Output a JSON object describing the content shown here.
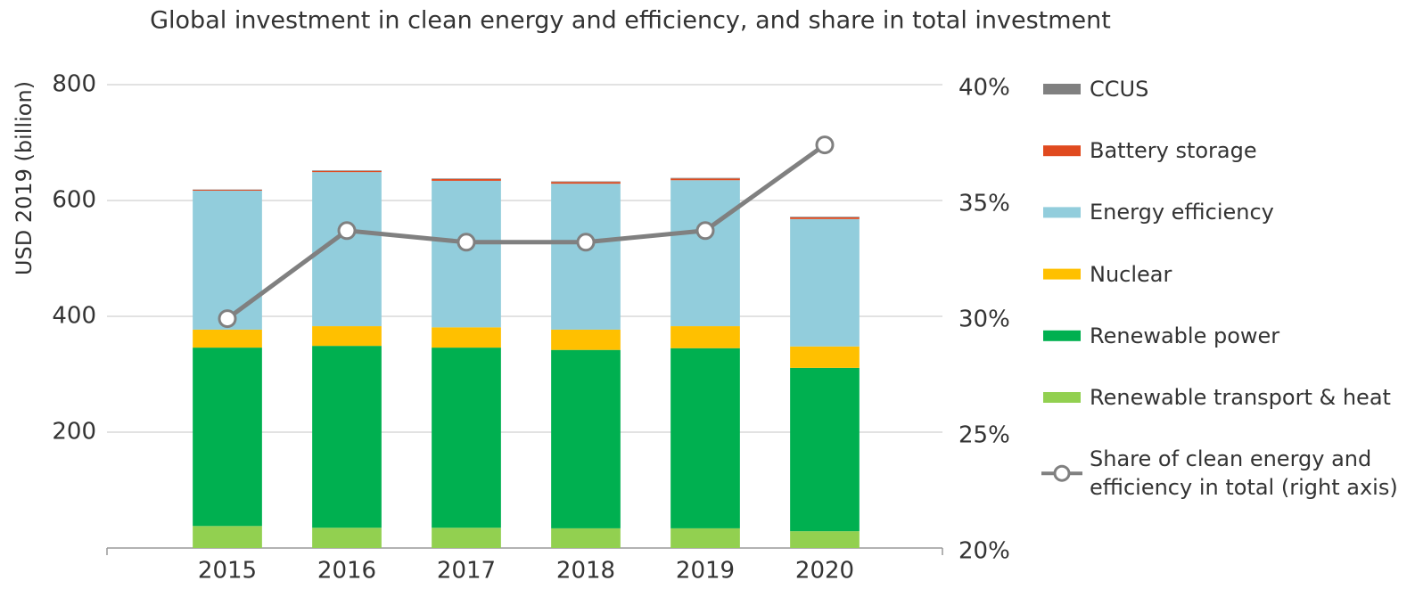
{
  "chart_data": {
    "type": "bar",
    "stacked": true,
    "title": "Global investment in clean energy and efficiency, and share in total investment",
    "ylabel": "USD 2019 (billion)",
    "categories": [
      "2015",
      "2016",
      "2017",
      "2018",
      "2019",
      "2020"
    ],
    "series": [
      {
        "name": "Renewable transport & heat",
        "color": "#92d050",
        "values": [
          38,
          35,
          35,
          34,
          34,
          29
        ]
      },
      {
        "name": "Renewable power",
        "color": "#00b050",
        "values": [
          308,
          314,
          311,
          308,
          311,
          282
        ]
      },
      {
        "name": "Nuclear",
        "color": "#ffc000",
        "values": [
          31,
          34,
          35,
          35,
          38,
          37
        ]
      },
      {
        "name": "Energy efficiency",
        "color": "#92cddc",
        "values": [
          240,
          266,
          253,
          252,
          252,
          220
        ]
      },
      {
        "name": "Battery storage",
        "color": "#e04a1f",
        "values": [
          1.5,
          2,
          3,
          3,
          3,
          3
        ]
      },
      {
        "name": "CCUS",
        "color": "#808080",
        "values": [
          0.5,
          1,
          1,
          1,
          1,
          1
        ]
      },
      {
        "name": "Share of clean energy and efficiency in total (right axis)",
        "color": "#808080",
        "type": "line",
        "axis": "y2",
        "values": [
          29.9,
          33.7,
          33.2,
          33.2,
          33.7,
          37.4
        ]
      }
    ],
    "ylim": [
      0,
      800
    ],
    "yticks": [
      200,
      400,
      600,
      800
    ],
    "y2lim": [
      20,
      40
    ],
    "y2ticks": [
      {
        "value": 20,
        "label": "20%"
      },
      {
        "value": 25,
        "label": "25%"
      },
      {
        "value": 30,
        "label": "30%"
      },
      {
        "value": 35,
        "label": "35%"
      },
      {
        "value": 40,
        "label": "40%"
      }
    ],
    "grid": true,
    "legend": "right"
  }
}
